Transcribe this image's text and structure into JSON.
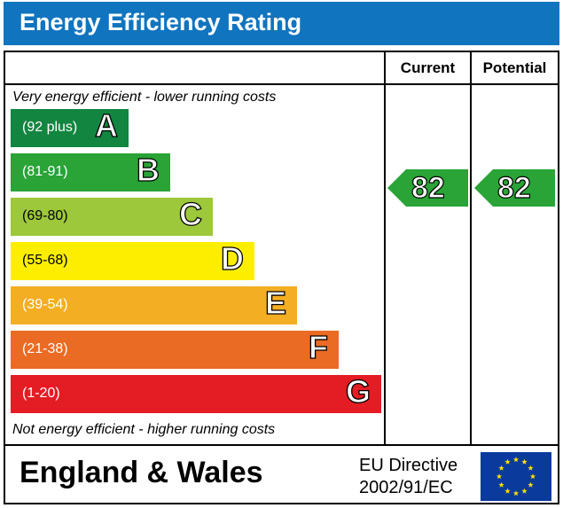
{
  "header": {
    "title": "Energy Efficiency Rating"
  },
  "columns": {
    "current": "Current",
    "potential": "Potential"
  },
  "notes": {
    "top": "Very energy efficient - lower running costs",
    "bottom": "Not energy efficient - higher running costs"
  },
  "bands": [
    {
      "range": "(92 plus)",
      "letter": "A",
      "color": "#128540"
    },
    {
      "range": "(81-91)",
      "letter": "B",
      "color": "#2aa337"
    },
    {
      "range": "(69-80)",
      "letter": "C",
      "color": "#9dc83b"
    },
    {
      "range": "(55-68)",
      "letter": "D",
      "color": "#fdee00"
    },
    {
      "range": "(39-54)",
      "letter": "E",
      "color": "#f4ae23"
    },
    {
      "range": "(21-38)",
      "letter": "F",
      "color": "#ea6b23"
    },
    {
      "range": "(1-20)",
      "letter": "G",
      "color": "#e31d23"
    }
  ],
  "ratings": {
    "current": {
      "value": "82",
      "band": "B",
      "color": "#2aa337"
    },
    "potential": {
      "value": "82",
      "band": "B",
      "color": "#2aa337"
    }
  },
  "footer": {
    "region": "England & Wales",
    "directive_line1": "EU Directive",
    "directive_line2": "2002/91/EC",
    "flag_icon": "eu-flag-icon",
    "flag_color": "#0a3a9c",
    "star_color": "#ffdd00"
  }
}
